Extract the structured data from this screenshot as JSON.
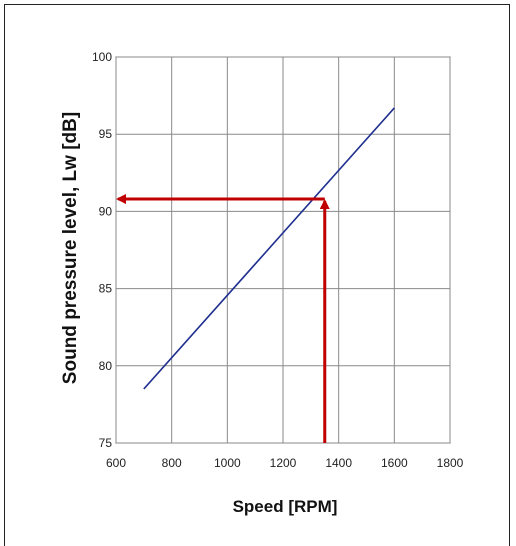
{
  "chart_data": {
    "type": "line",
    "xlabel": "Speed [RPM]",
    "ylabel": "Sound pressure level, Lw [dB]",
    "xlim": [
      600,
      1800
    ],
    "ylim": [
      75,
      100
    ],
    "x_ticks": [
      600,
      800,
      1000,
      1200,
      1400,
      1600,
      1800
    ],
    "y_ticks": [
      75,
      80,
      85,
      90,
      95,
      100
    ],
    "grid": true,
    "series": [
      {
        "color": "#1f2f8f",
        "x": [
          700,
          1600
        ],
        "y": [
          78.5,
          96.7
        ]
      }
    ],
    "annotations": {
      "color": "#c00000",
      "vertical_arrow": {
        "x": 1350,
        "y_from": 75,
        "y_to": 90.8
      },
      "horizontal_arrow": {
        "y": 90.8,
        "x_from": 1350,
        "x_to": 600
      }
    }
  }
}
